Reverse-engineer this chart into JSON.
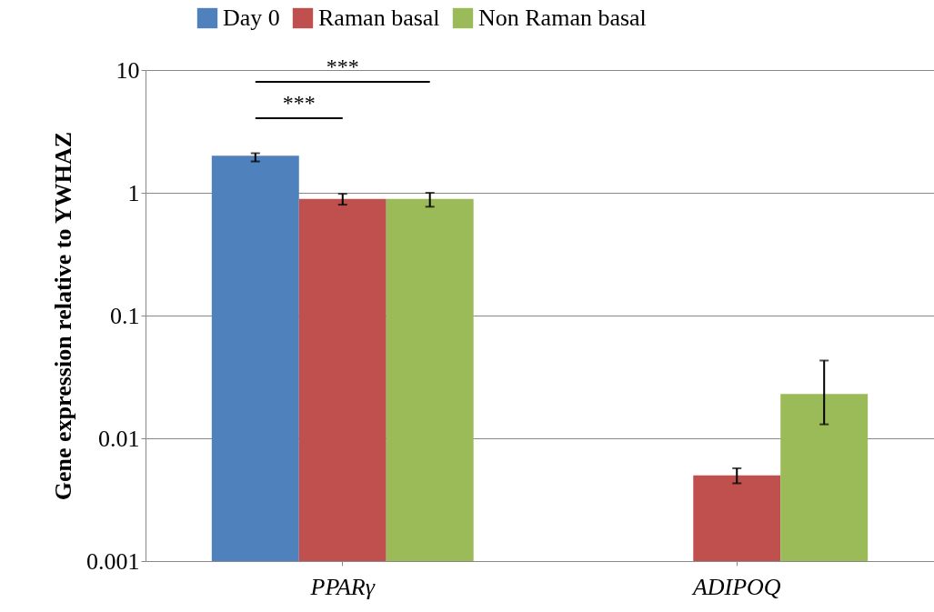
{
  "chart_data": {
    "type": "bar",
    "ylabel": "Gene expression relative to YWHAZ",
    "categories": [
      "PPARγ",
      "ADIPOQ"
    ],
    "series": [
      {
        "name": "Day 0",
        "color": "#4f81bd",
        "values": [
          2.0,
          null
        ],
        "errors": [
          [
            1.8,
            2.1
          ],
          null
        ]
      },
      {
        "name": "Raman basal",
        "color": "#c0504d",
        "values": [
          0.89,
          0.005
        ],
        "errors": [
          [
            0.8,
            0.98
          ],
          [
            0.0043,
            0.0057
          ]
        ]
      },
      {
        "name": "Non Raman basal",
        "color": "#9bbb59",
        "values": [
          0.89,
          0.023
        ],
        "errors": [
          [
            0.77,
            1.0
          ],
          [
            0.013,
            0.043
          ]
        ]
      }
    ],
    "log": true,
    "ylim": [
      0.001,
      10
    ],
    "yticks": [
      0.001,
      0.01,
      0.1,
      1,
      10
    ],
    "grid": "y",
    "legend": "top",
    "annotations": [
      "***",
      "***"
    ]
  }
}
